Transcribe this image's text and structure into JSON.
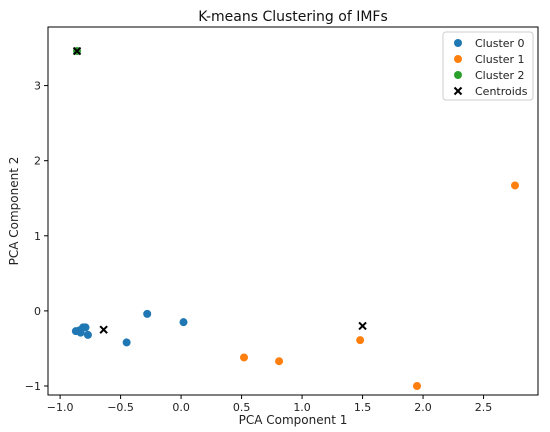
{
  "chart_data": {
    "type": "scatter",
    "title": "K-means Clustering of IMFs",
    "xlabel": "PCA Component 1",
    "ylabel": "PCA Component 2",
    "xlim": [
      -1.1,
      2.95
    ],
    "ylim": [
      -1.12,
      3.78
    ],
    "xticks": [
      -1.0,
      -0.5,
      0.0,
      0.5,
      1.0,
      1.5,
      2.0,
      2.5
    ],
    "xtick_labels": [
      "−1.0",
      "−0.5",
      "0.0",
      "0.5",
      "1.0",
      "1.5",
      "2.0",
      "2.5"
    ],
    "yticks": [
      -1,
      0,
      1,
      2,
      3
    ],
    "ytick_labels": [
      "−1",
      "0",
      "1",
      "2",
      "3"
    ],
    "grid": false,
    "legend_position": "top-right",
    "series": [
      {
        "name": "Cluster 0",
        "color": "#1f77b4",
        "marker": "circle",
        "points": [
          [
            -0.87,
            -0.27
          ],
          [
            -0.84,
            -0.26
          ],
          [
            -0.83,
            -0.29
          ],
          [
            -0.81,
            -0.22
          ],
          [
            -0.79,
            -0.22
          ],
          [
            -0.77,
            -0.32
          ],
          [
            -0.45,
            -0.42
          ],
          [
            -0.28,
            -0.04
          ],
          [
            0.02,
            -0.15
          ]
        ]
      },
      {
        "name": "Cluster 1",
        "color": "#ff7f0e",
        "marker": "circle",
        "points": [
          [
            0.52,
            -0.62
          ],
          [
            0.81,
            -0.67
          ],
          [
            1.48,
            -0.39
          ],
          [
            1.95,
            -1.0
          ],
          [
            2.76,
            1.67
          ]
        ]
      },
      {
        "name": "Cluster 2",
        "color": "#2ca02c",
        "marker": "circle",
        "points": [
          [
            -0.86,
            3.46
          ]
        ]
      },
      {
        "name": "Centroids",
        "color": "#000000",
        "marker": "x",
        "points": [
          [
            -0.64,
            -0.25
          ],
          [
            1.5,
            -0.2
          ],
          [
            -0.86,
            3.46
          ]
        ]
      }
    ]
  }
}
